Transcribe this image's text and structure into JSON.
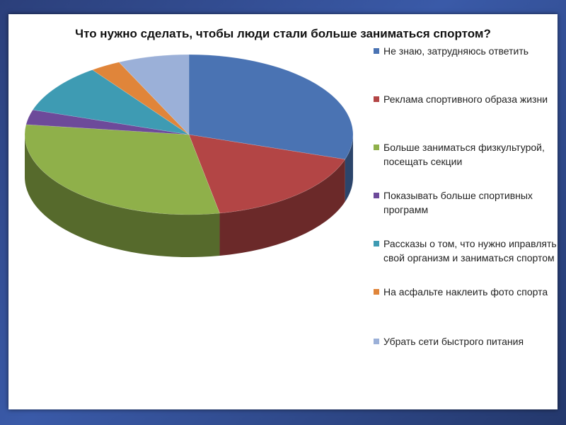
{
  "chart_data": {
    "type": "pie",
    "style": "3d",
    "title": "Что нужно сделать, чтобы люди стали больше заниматься спортом?",
    "legend_position": "right",
    "slices": [
      {
        "label": "Не знаю, затрудняюсь ответить",
        "value": 30,
        "color": "#4a73b3"
      },
      {
        "label": "Реклама спортивного образа жизни",
        "value": 17,
        "color": "#b34545"
      },
      {
        "label": "Больше заниматься физкультурой, посещать секции",
        "value": 30,
        "color": "#8fb04a"
      },
      {
        "label": "Показывать больше спортивных программ",
        "value": 3,
        "color": "#6d4a9a"
      },
      {
        "label": "Рассказы о том, что нужно иправлять свой организм и заниматься спортом",
        "value": 10,
        "color": "#3e9bb3"
      },
      {
        "label": "На асфальте наклеить фото спорта",
        "value": 3,
        "color": "#e0853a"
      },
      {
        "label": "Убрать сети быстрого питания",
        "value": 7,
        "color": "#9bb0d8"
      }
    ]
  }
}
